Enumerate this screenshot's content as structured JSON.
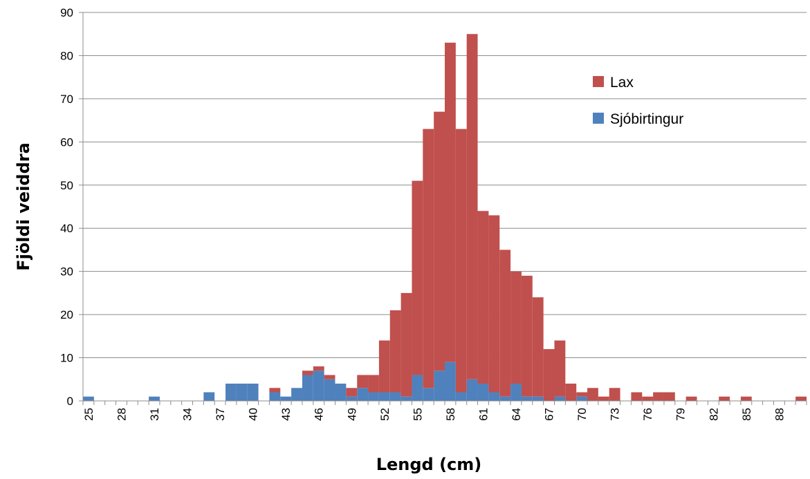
{
  "chart_data": {
    "type": "bar",
    "stacked": true,
    "title": "",
    "xlabel": "Lengd (cm)",
    "ylabel": "Fjöldi veiddra",
    "ylim": [
      0,
      90
    ],
    "yticks": [
      0,
      10,
      20,
      30,
      40,
      50,
      60,
      70,
      80,
      90
    ],
    "x": [
      25,
      26,
      27,
      28,
      29,
      30,
      31,
      32,
      33,
      34,
      35,
      36,
      37,
      38,
      39,
      40,
      41,
      42,
      43,
      44,
      45,
      46,
      47,
      48,
      49,
      50,
      51,
      52,
      53,
      54,
      55,
      56,
      57,
      58,
      59,
      60,
      61,
      62,
      63,
      64,
      65,
      66,
      67,
      68,
      69,
      70,
      71,
      72,
      73,
      74,
      75,
      76,
      77,
      78,
      79,
      80,
      81,
      82,
      83,
      84,
      85,
      86,
      87,
      88,
      89,
      90
    ],
    "xtick_labels": [
      "25",
      "28",
      "31",
      "34",
      "37",
      "40",
      "43",
      "46",
      "49",
      "52",
      "55",
      "58",
      "61",
      "64",
      "67",
      "70",
      "73",
      "76",
      "79",
      "82",
      "85",
      "88"
    ],
    "grid": "horizontal",
    "legend_position": "right",
    "series": [
      {
        "name": "Sjóbirtingur",
        "color": "#4F81BD",
        "values": [
          1,
          0,
          0,
          0,
          0,
          0,
          1,
          0,
          0,
          0,
          0,
          2,
          0,
          4,
          4,
          4,
          0,
          2,
          1,
          3,
          6,
          7,
          5,
          4,
          1,
          3,
          2,
          2,
          2,
          1,
          6,
          3,
          7,
          9,
          2,
          5,
          4,
          2,
          1,
          4,
          1,
          1,
          0,
          1,
          0,
          1,
          0,
          0,
          0,
          0,
          0,
          0,
          0,
          0,
          0,
          0,
          0,
          0,
          0,
          0,
          0,
          0,
          0,
          0,
          0,
          0
        ]
      },
      {
        "name": "Lax",
        "color": "#C0504D",
        "values": [
          0,
          0,
          0,
          0,
          0,
          0,
          0,
          0,
          0,
          0,
          0,
          0,
          0,
          0,
          0,
          0,
          0,
          1,
          0,
          0,
          1,
          1,
          1,
          0,
          2,
          3,
          4,
          12,
          19,
          24,
          45,
          60,
          60,
          74,
          61,
          80,
          40,
          41,
          34,
          26,
          28,
          23,
          12,
          13,
          4,
          1,
          3,
          1,
          3,
          0,
          2,
          1,
          2,
          2,
          0,
          1,
          0,
          0,
          1,
          0,
          1,
          0,
          0,
          0,
          0,
          1
        ]
      }
    ],
    "legend": [
      {
        "name": "Lax",
        "color": "#C0504D"
      },
      {
        "name": "Sjóbirtingur",
        "color": "#4F81BD"
      }
    ]
  }
}
